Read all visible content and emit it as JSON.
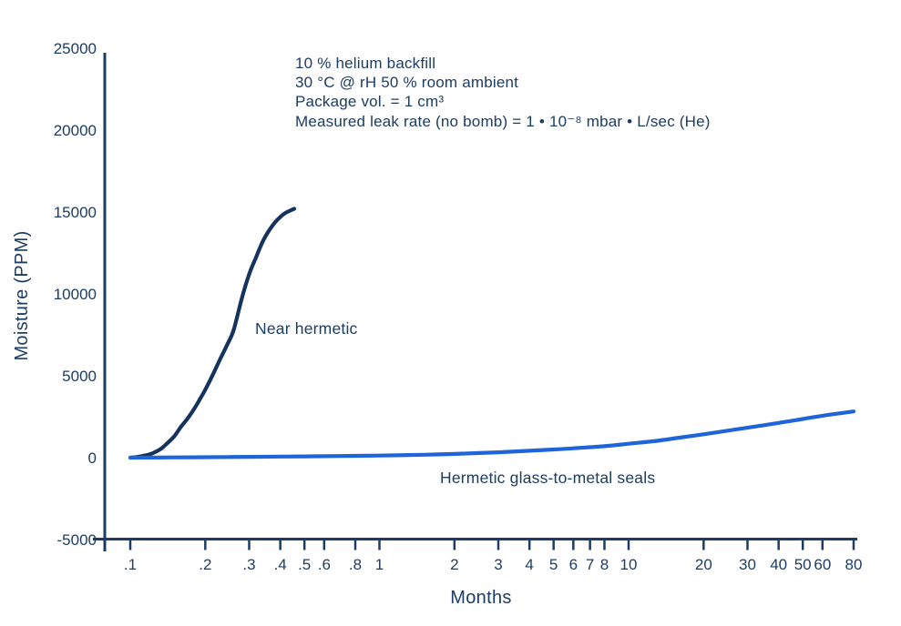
{
  "colors": {
    "text": "#1d3c63",
    "axis": "#1d3c63",
    "near_hermetic_curve": "#15335c",
    "hermetic_curve": "#1f64d8",
    "background": "#ffffff"
  },
  "chart_data": {
    "type": "line",
    "title": "",
    "xlabel": "Months",
    "ylabel": "Moisture (PPM)",
    "x_scale": "log",
    "xlim": [
      0.1,
      80
    ],
    "ylim": [
      -5000,
      25000
    ],
    "grid": false,
    "legend_position": "inline-annotations",
    "x_ticks": [
      0.1,
      0.2,
      0.3,
      0.4,
      0.5,
      0.6,
      0.8,
      1,
      2,
      3,
      4,
      5,
      6,
      7,
      8,
      10,
      20,
      30,
      40,
      50,
      60,
      80
    ],
    "x_tick_labels": [
      ".1",
      ".2",
      ".3",
      ".4",
      ".5",
      ".6",
      ".8",
      "1",
      "2",
      "3",
      "4",
      "5",
      "6",
      "7",
      "8",
      "10",
      "20",
      "30",
      "40",
      "50",
      "60",
      "80"
    ],
    "y_ticks": [
      -5000,
      0,
      5000,
      10000,
      15000,
      20000,
      25000
    ],
    "y_tick_labels": [
      "-5000",
      "0",
      "5000",
      "10000",
      "15000",
      "20000",
      "25000"
    ],
    "annotation_lines": [
      "10 % helium backfill",
      "30 °C @ rH 50 % room ambient",
      "Package vol. = 1 cm³",
      "Measured leak rate (no bomb) = 1 • 10⁻⁸ mbar • L/sec (He)"
    ],
    "series": [
      {
        "name": "Near hermetic",
        "color": "#15335c",
        "x": [
          0.1,
          0.105,
          0.11,
          0.118,
          0.125,
          0.133,
          0.14,
          0.15,
          0.16,
          0.17,
          0.18,
          0.19,
          0.2,
          0.215,
          0.23,
          0.245,
          0.26,
          0.28,
          0.3,
          0.32,
          0.34,
          0.36,
          0.38,
          0.4,
          0.42,
          0.44,
          0.455
        ],
        "y": [
          0,
          30,
          80,
          180,
          320,
          550,
          850,
          1300,
          1900,
          2400,
          2950,
          3550,
          4150,
          5100,
          6050,
          6900,
          7800,
          9700,
          11200,
          12250,
          13200,
          13850,
          14350,
          14700,
          14950,
          15100,
          15200
        ]
      },
      {
        "name": "Hermetic glass-to-metal seals",
        "color": "#1f64d8",
        "x": [
          0.1,
          0.15,
          0.2,
          0.3,
          0.4,
          0.5,
          0.6,
          0.8,
          1,
          1.5,
          2,
          3,
          4,
          5,
          6,
          7,
          8,
          10,
          13,
          16,
          20,
          25,
          30,
          40,
          50,
          60,
          80
        ],
        "y": [
          0,
          15,
          30,
          50,
          65,
          80,
          90,
          110,
          130,
          180,
          230,
          330,
          420,
          500,
          570,
          640,
          700,
          850,
          1030,
          1220,
          1430,
          1650,
          1830,
          2120,
          2360,
          2560,
          2820
        ]
      }
    ]
  }
}
